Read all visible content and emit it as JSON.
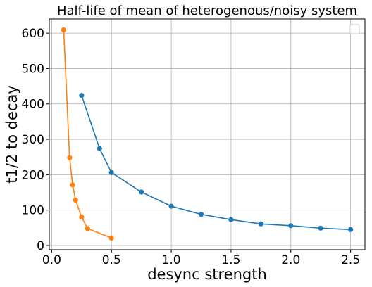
{
  "chart_data": {
    "type": "line",
    "title": "Half-life of mean of heterogenous/noisy system",
    "xlabel": "desync strength",
    "ylabel": "t1/2 to decay",
    "xlim": [
      -0.02,
      2.62
    ],
    "ylim": [
      -12,
      640
    ],
    "xticks": [
      0.0,
      0.5,
      1.0,
      1.5,
      2.0,
      2.5
    ],
    "xtick_labels": [
      "0.0",
      "0.5",
      "1.0",
      "1.5",
      "2.0",
      "2.5"
    ],
    "yticks": [
      0,
      100,
      200,
      300,
      400,
      500,
      600
    ],
    "ytick_labels": [
      "0",
      "100",
      "200",
      "300",
      "400",
      "500",
      "600"
    ],
    "grid": true,
    "legend": "top-right (empty)",
    "series": [
      {
        "color": "#1f77b4",
        "x": [
          0.25,
          0.4,
          0.5,
          0.75,
          1.0,
          1.25,
          1.5,
          1.75,
          2.0,
          2.25,
          2.5
        ],
        "values": [
          424,
          274,
          206,
          151,
          111,
          88,
          73,
          61,
          56,
          49,
          45
        ]
      },
      {
        "color": "#ff7f0e",
        "x": [
          0.1,
          0.15,
          0.175,
          0.2,
          0.25,
          0.3,
          0.5
        ],
        "values": [
          609,
          248,
          171,
          128,
          80,
          48,
          21
        ]
      }
    ]
  }
}
